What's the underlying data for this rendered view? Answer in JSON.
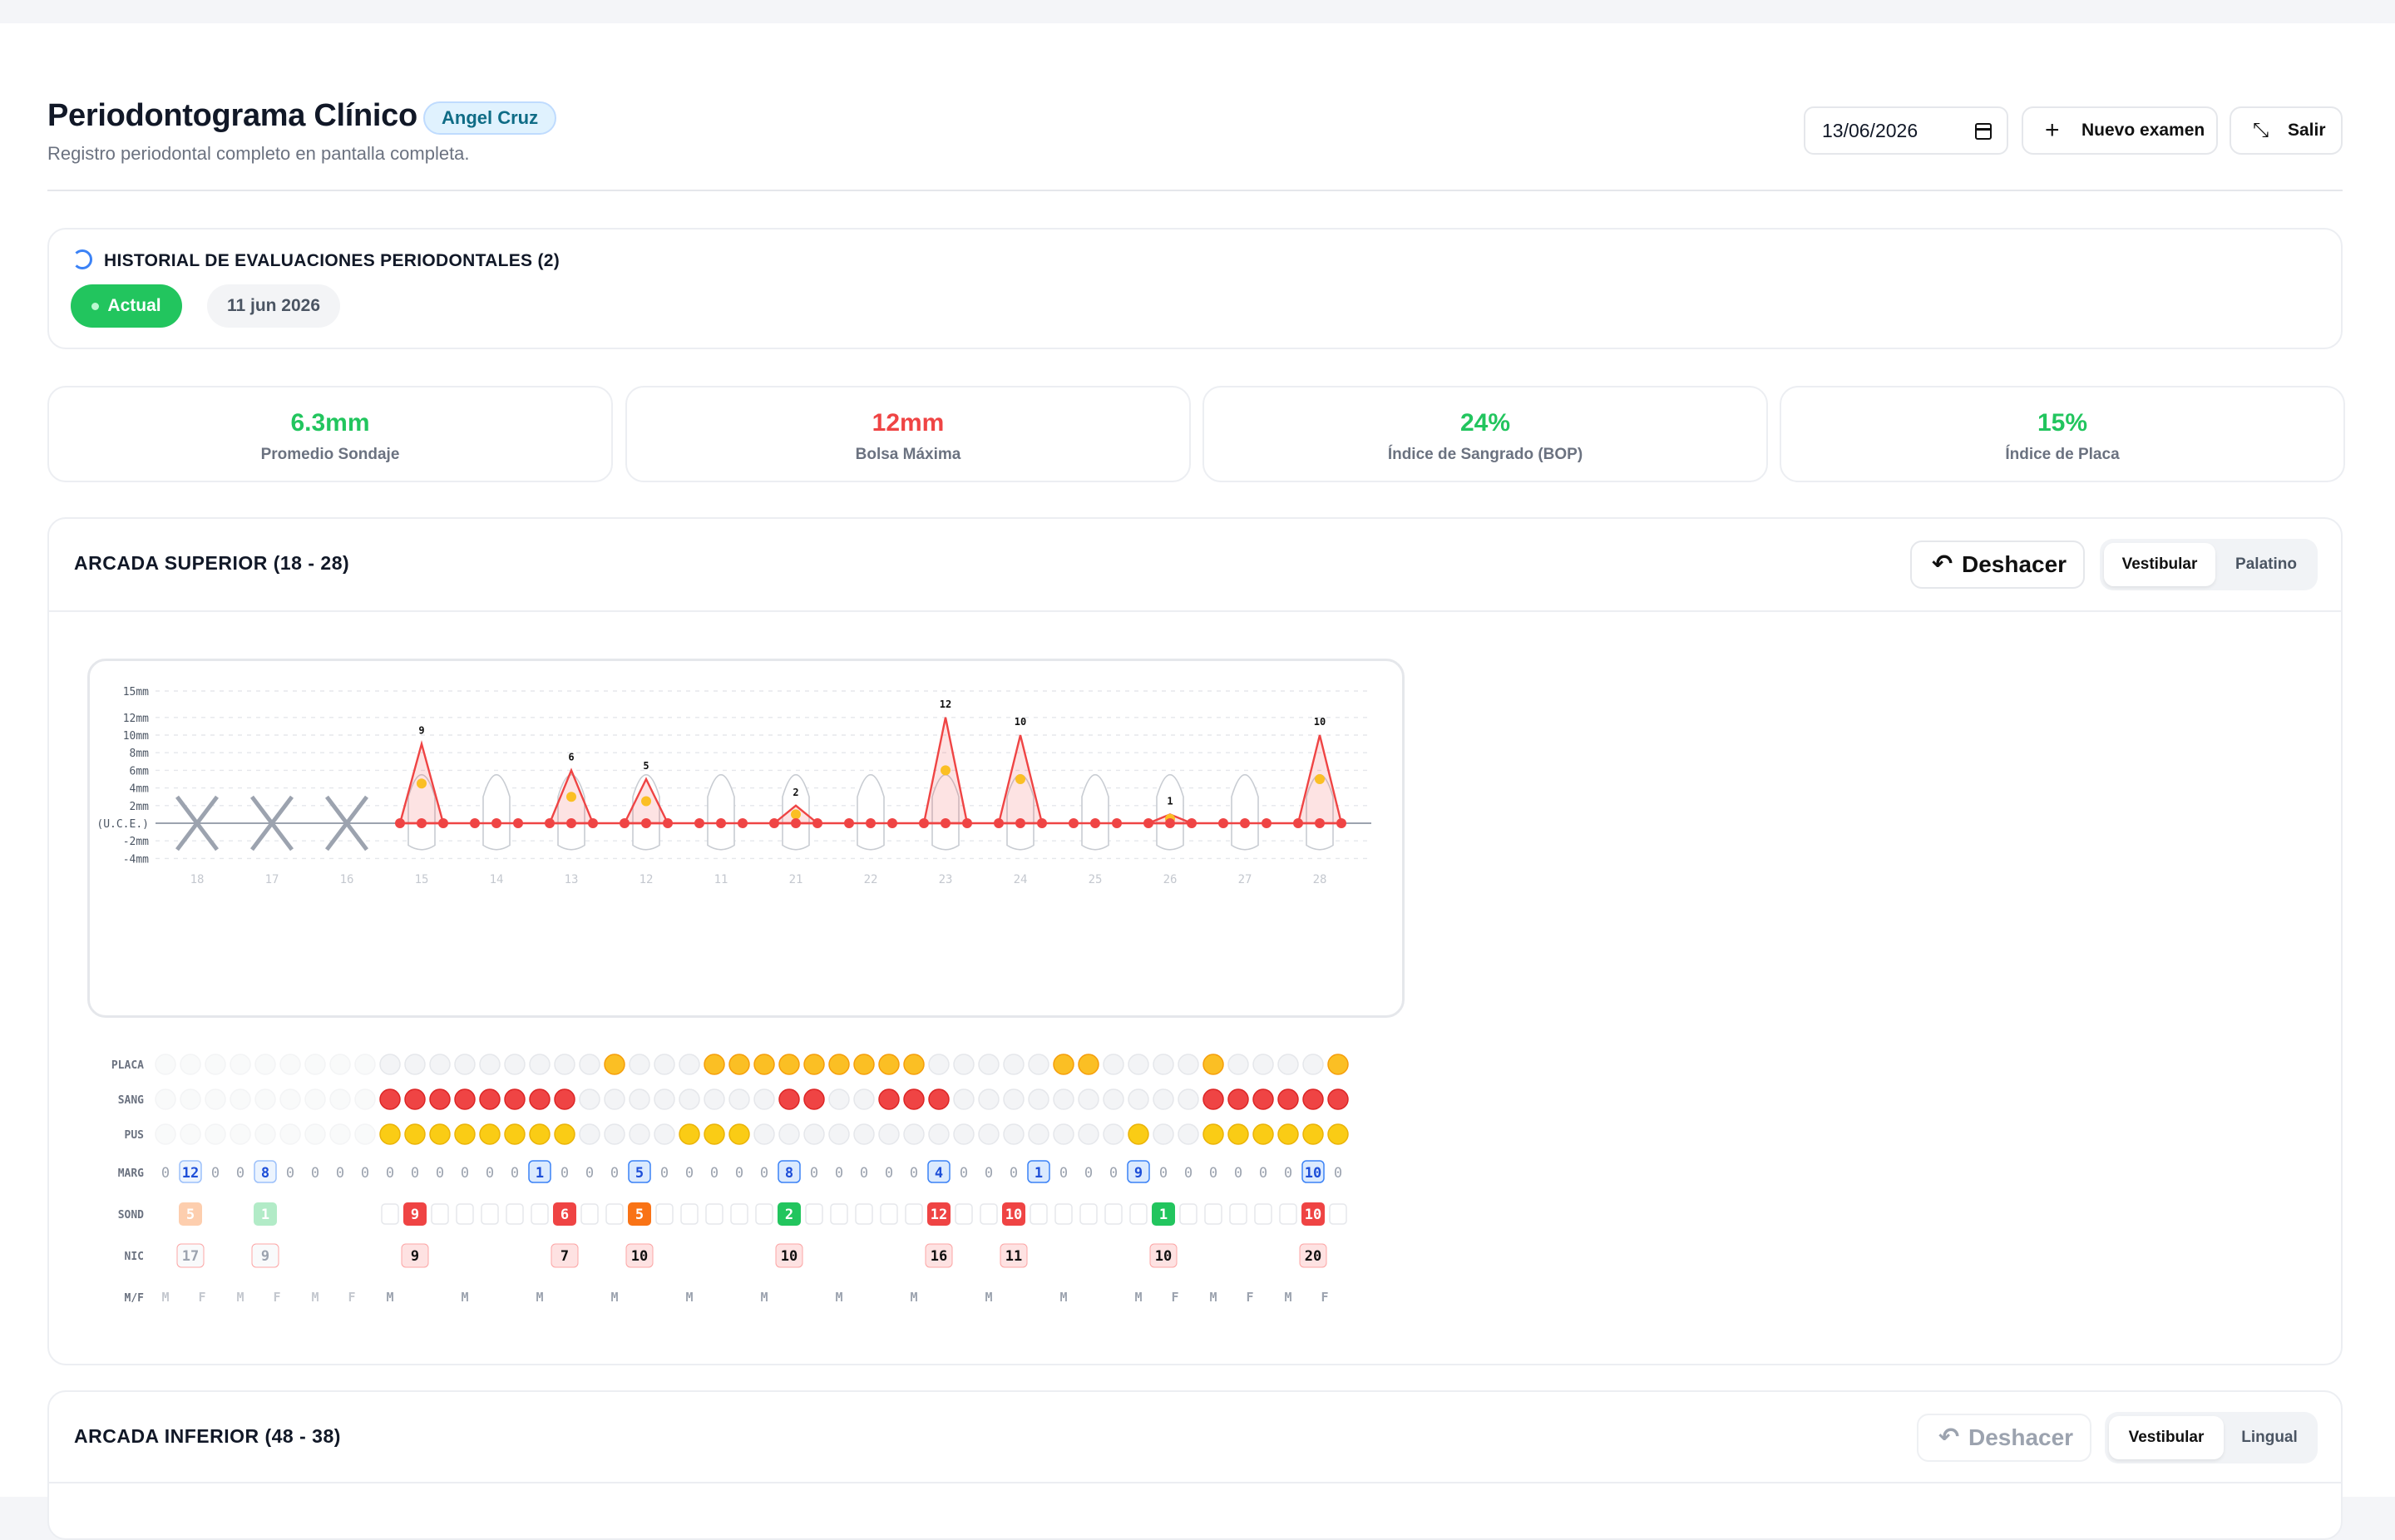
{
  "header": {
    "title": "Periodontograma Clínico",
    "patient": "Angel Cruz",
    "subtitle": "Registro periodontal completo en pantalla completa.",
    "date": "13/06/2026",
    "new_exam_label": "Nuevo examen",
    "exit_label": "Salir"
  },
  "history": {
    "title": "HISTORIAL DE EVALUACIONES PERIODONTALES (2)",
    "current_label": "Actual",
    "previous_date": "11 jun 2026"
  },
  "stats": [
    {
      "value": "6.3mm",
      "label": "Promedio Sondaje",
      "color": "#22c55e"
    },
    {
      "value": "12mm",
      "label": "Bolsa Máxima",
      "color": "#ef4444"
    },
    {
      "value": "24%",
      "label": "Índice de Sangrado (BOP)",
      "color": "#22c55e"
    },
    {
      "value": "15%",
      "label": "Índice de Placa",
      "color": "#22c55e"
    }
  ],
  "upper_arch": {
    "title": "ARCADA SUPERIOR (18 - 28)",
    "undo_label": "Deshacer",
    "tab_vestibular": "Vestibular",
    "tab_palatino": "Palatino",
    "y_axis_labels": [
      "15mm",
      "12mm",
      "10mm",
      "8mm",
      "6mm",
      "4mm",
      "2mm",
      "(U.C.E.)",
      "-2mm",
      "-4mm"
    ],
    "y_axis_values": [
      15,
      12,
      10,
      8,
      6,
      4,
      2,
      0,
      -2,
      -4
    ],
    "teeth": [
      "18",
      "17",
      "16",
      "15",
      "14",
      "13",
      "12",
      "11",
      "21",
      "22",
      "23",
      "24",
      "25",
      "26",
      "27",
      "28"
    ],
    "missing_teeth": [
      "18",
      "17",
      "16"
    ],
    "peak_labels": [
      {
        "tooth": "15",
        "value": "9"
      },
      {
        "tooth": "13",
        "value": "6"
      },
      {
        "tooth": "12",
        "value": "5"
      },
      {
        "tooth": "21",
        "value": "2"
      },
      {
        "tooth": "23",
        "value": "12"
      },
      {
        "tooth": "24",
        "value": "10"
      },
      {
        "tooth": "26",
        "value": "1"
      },
      {
        "tooth": "28",
        "value": "10"
      }
    ],
    "row_labels": {
      "placa": "PLACA",
      "sang": "SANG",
      "pus": "PUS",
      "marg": "MARG",
      "sond": "SOND",
      "nic": "NIC",
      "mf": "M/F"
    },
    "marg_values": [
      [
        "0",
        "12",
        "0"
      ],
      [
        "0",
        "8",
        "0"
      ],
      [
        "0",
        "0",
        "0"
      ],
      [
        "0",
        "0",
        "0"
      ],
      [
        "0",
        "0",
        "0"
      ],
      [
        "1",
        "0",
        "0"
      ],
      [
        "0",
        "5",
        "0"
      ],
      [
        "0",
        "0",
        "0"
      ],
      [
        "0",
        "8",
        "0"
      ],
      [
        "0",
        "0",
        "0"
      ],
      [
        "0",
        "4",
        "0"
      ],
      [
        "0",
        "0",
        "1"
      ],
      [
        "0",
        "0",
        "0"
      ],
      [
        "9",
        "0",
        "0"
      ],
      [
        "0",
        "0",
        "0"
      ],
      [
        "0",
        "10",
        "0"
      ]
    ],
    "sond_values": [
      [
        "",
        "5",
        ""
      ],
      [
        "",
        "1",
        ""
      ],
      [
        "",
        "",
        ""
      ],
      [
        "",
        "9",
        ""
      ],
      [
        "",
        "",
        ""
      ],
      [
        "",
        "6",
        ""
      ],
      [
        "",
        "5",
        ""
      ],
      [
        "",
        "",
        ""
      ],
      [
        "",
        "2",
        ""
      ],
      [
        "",
        "",
        ""
      ],
      [
        "",
        "12",
        ""
      ],
      [
        "",
        "10",
        ""
      ],
      [
        "",
        "",
        ""
      ],
      [
        "",
        "1",
        ""
      ],
      [
        "",
        "",
        ""
      ],
      [
        "",
        "10",
        ""
      ]
    ],
    "nic_values": [
      "17",
      "9",
      "",
      "9",
      "",
      "7",
      "10",
      "",
      "10",
      "",
      "16",
      "11",
      "",
      "10",
      "",
      "20"
    ],
    "mf_values": [
      [
        "M",
        "F"
      ],
      [
        "M",
        "F"
      ],
      [
        "M",
        "F"
      ],
      [
        "M",
        ""
      ],
      [
        "M",
        ""
      ],
      [
        "M",
        ""
      ],
      [
        "M",
        ""
      ],
      [
        "M",
        ""
      ],
      [
        "M",
        ""
      ],
      [
        "M",
        ""
      ],
      [
        "M",
        ""
      ],
      [
        "M",
        ""
      ],
      [
        "M",
        ""
      ],
      [
        "M",
        "F"
      ],
      [
        "M",
        "F"
      ],
      [
        "M",
        "F"
      ]
    ]
  },
  "lower_arch": {
    "title": "ARCADA INFERIOR (48 - 38)",
    "undo_label": "Deshacer",
    "tab_vestibular": "Vestibular",
    "tab_lingual": "Lingual"
  },
  "colors": {
    "accent_green": "#22c55e",
    "alert_red": "#ef4444",
    "plaque_yellow": "#fbbf24",
    "pus_yellow": "#facc15",
    "margin_blue": "#3b82f6"
  }
}
